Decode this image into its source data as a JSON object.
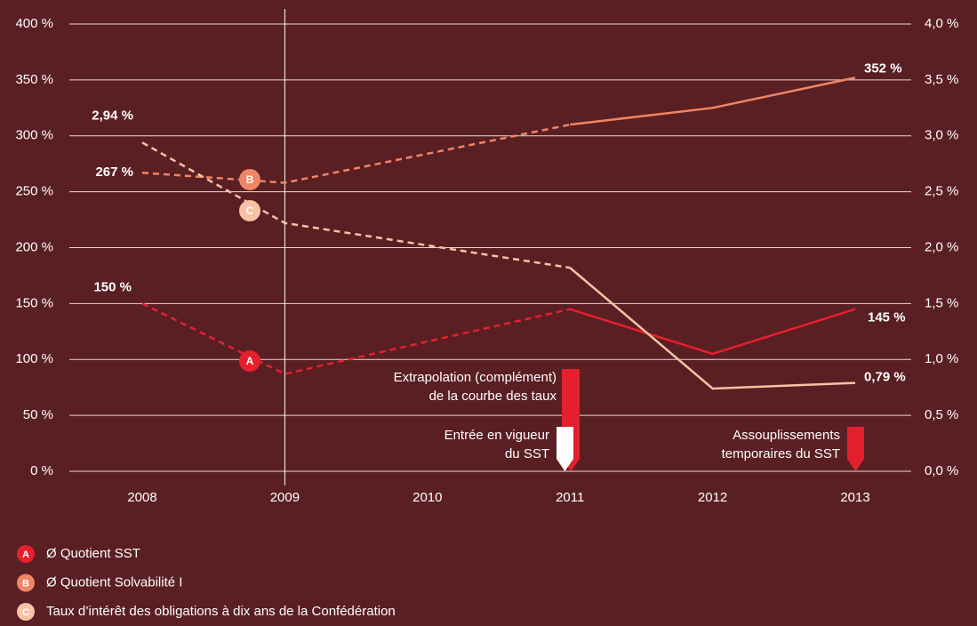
{
  "chart_data": {
    "type": "line",
    "categories": [
      "2008",
      "2009",
      "2010",
      "2011",
      "2012",
      "2013"
    ],
    "series": [
      {
        "name": "Ø Quotient SST",
        "marker": "A",
        "color": "#e5202e",
        "axis": "y",
        "values": [
          150,
          87,
          116,
          145,
          105,
          145
        ],
        "value_labels": [
          "150 %",
          null,
          null,
          null,
          null,
          "145 %"
        ],
        "segment_styles": [
          "dashed",
          "dashed",
          "dashed",
          "solid",
          "solid"
        ]
      },
      {
        "name": "Ø Quotient Solvabilité I",
        "marker": "B",
        "color": "#f08566",
        "axis": "y",
        "values": [
          267,
          258,
          284,
          310,
          325,
          352
        ],
        "value_labels": [
          "267 %",
          null,
          null,
          null,
          null,
          "352 %"
        ],
        "segment_styles": [
          "dashed",
          "dashed",
          "dashed",
          "solid",
          "solid"
        ]
      },
      {
        "name": "Taux d’intérêt des obligations à dix ans de la Confédération",
        "marker": "C",
        "color": "#f8c2a6",
        "axis": "y2",
        "values": [
          2.94,
          2.22,
          2.02,
          1.82,
          0.74,
          0.79
        ],
        "value_labels": [
          "2,94 %",
          null,
          null,
          null,
          null,
          "0,79 %"
        ],
        "segment_styles": [
          "dashed",
          "dashed",
          "dashed",
          "solid",
          "solid"
        ]
      }
    ],
    "ylim": [
      0,
      400
    ],
    "yticks": [
      {
        "value": 0,
        "label": "0 %"
      },
      {
        "value": 50,
        "label": "50 %"
      },
      {
        "value": 100,
        "label": "100 %"
      },
      {
        "value": 150,
        "label": "150 %"
      },
      {
        "value": 200,
        "label": "200 %"
      },
      {
        "value": 250,
        "label": "250 %"
      },
      {
        "value": 300,
        "label": "300 %"
      },
      {
        "value": 350,
        "label": "350 %"
      },
      {
        "value": 400,
        "label": "400 %"
      }
    ],
    "y2lim": [
      0,
      4
    ],
    "y2ticks": [
      {
        "value": 0,
        "label": "0,0 %"
      },
      {
        "value": 0.5,
        "label": "0,5 %"
      },
      {
        "value": 1,
        "label": "1,0 %"
      },
      {
        "value": 1.5,
        "label": "1,5 %"
      },
      {
        "value": 2,
        "label": "2,0 %"
      },
      {
        "value": 2.5,
        "label": "2,5 %"
      },
      {
        "value": 3,
        "label": "3,0 %"
      },
      {
        "value": 3.5,
        "label": "3,5 %"
      },
      {
        "value": 4,
        "label": "4,0 %"
      }
    ],
    "grid": true,
    "annotations": [
      {
        "lines": [
          "Extrapolation (complément)",
          "de la courbe des taux"
        ],
        "category": "2011",
        "color": "#e5202e"
      },
      {
        "lines": [
          "Entrée en vigueur",
          "du SST"
        ],
        "category": "2011",
        "color": "#ffffff"
      },
      {
        "lines": [
          "Assouplissements",
          "temporaires du SST"
        ],
        "category": "2013",
        "color": "#e5202e"
      }
    ],
    "vline_category": "2009"
  }
}
